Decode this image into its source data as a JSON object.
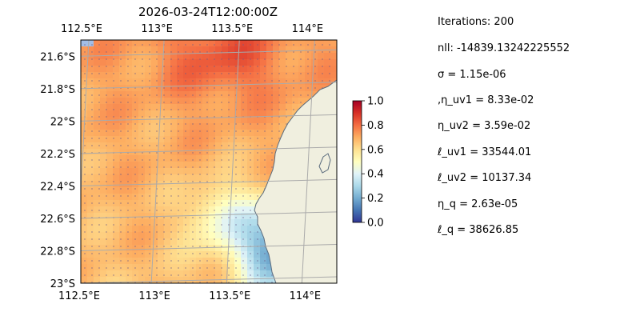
{
  "chart_data": {
    "type": "heatmap",
    "title": "2026-03-24T12:00:00Z",
    "x_ticks": [
      "112.5°E",
      "113°E",
      "113.5°E",
      "114°E"
    ],
    "x_tick_values": [
      112.5,
      113.0,
      113.5,
      114.0
    ],
    "y_ticks": [
      "21.6°S",
      "21.8°S",
      "22°S",
      "22.2°S",
      "22.4°S",
      "22.6°S",
      "22.8°S",
      "23°S"
    ],
    "y_tick_values": [
      -21.6,
      -21.8,
      -22.0,
      -22.2,
      -22.4,
      -22.6,
      -22.8,
      -23.0
    ],
    "xlim": [
      112.5,
      114.2
    ],
    "ylim": [
      -23.0,
      -21.5
    ],
    "colorbar": {
      "ticks": [
        "0.0",
        "0.2",
        "0.4",
        "0.6",
        "0.8",
        "1.0"
      ],
      "range": [
        0.0,
        1.0
      ],
      "colormap": "RdYlBu_r"
    },
    "grid": true,
    "colors": {
      "land": "#f0efdf",
      "ocean": "#a3bee6",
      "coastline": "#5a6b7d",
      "gridline": "#aaaaaa"
    }
  },
  "params": [
    "Iterations: 200",
    "nll: -14839.13242225552",
    "σ = 1.15e-06",
    ",η_uv1 = 8.33e-02",
    "η_uv2 = 3.59e-02",
    "ℓ_uv1 = 33544.01",
    "ℓ_uv2 = 10137.34",
    "η_q = 2.63e-05",
    "ℓ_q = 38626.85"
  ]
}
